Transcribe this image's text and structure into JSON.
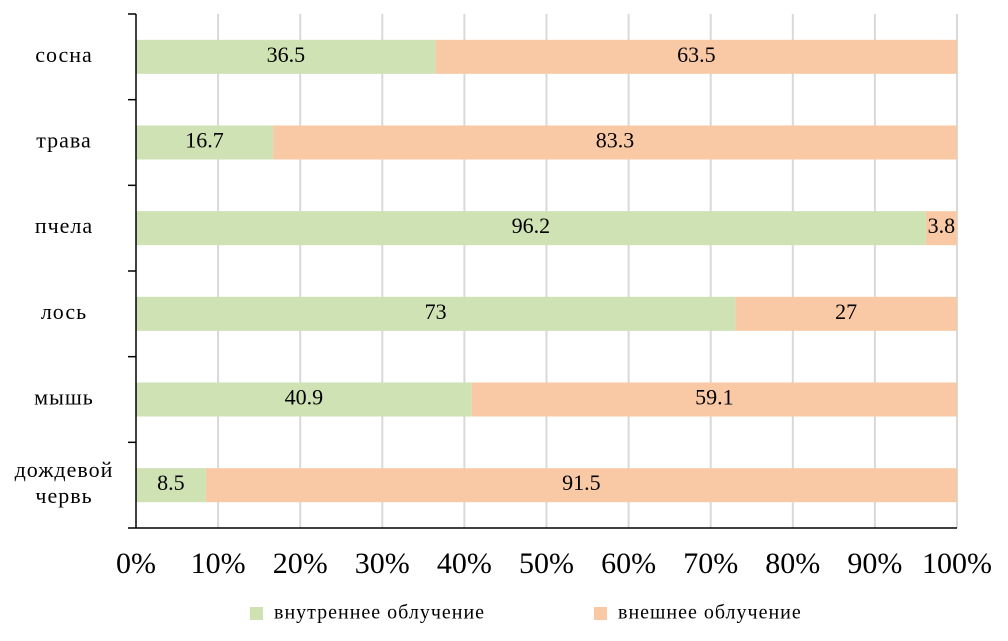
{
  "chart_data": {
    "type": "stacked_bar_horizontal",
    "categories": [
      "сосна",
      "трава",
      "пчела",
      "лось",
      "мышь",
      "дождевой червь"
    ],
    "series": [
      {
        "name": "внутреннее облучение",
        "color": "#cfe2b4",
        "values": [
          36.5,
          16.7,
          96.2,
          73,
          40.9,
          8.5
        ]
      },
      {
        "name": "внешнее облучение",
        "color": "#f9c9a6",
        "values": [
          63.5,
          83.3,
          3.8,
          27,
          59.1,
          91.5
        ]
      }
    ],
    "xlim": [
      0,
      100
    ],
    "xticks": [
      {
        "value": 0,
        "label": "0%"
      },
      {
        "value": 10,
        "label": "10%"
      },
      {
        "value": 20,
        "label": "20%"
      },
      {
        "value": 30,
        "label": "30%"
      },
      {
        "value": 40,
        "label": "40%"
      },
      {
        "value": 50,
        "label": "50%"
      },
      {
        "value": 60,
        "label": "60%"
      },
      {
        "value": 70,
        "label": "70%"
      },
      {
        "value": 80,
        "label": "80%"
      },
      {
        "value": 90,
        "label": "90%"
      },
      {
        "value": 100,
        "label": "100%"
      }
    ],
    "grid": true,
    "legend": "bottom"
  }
}
